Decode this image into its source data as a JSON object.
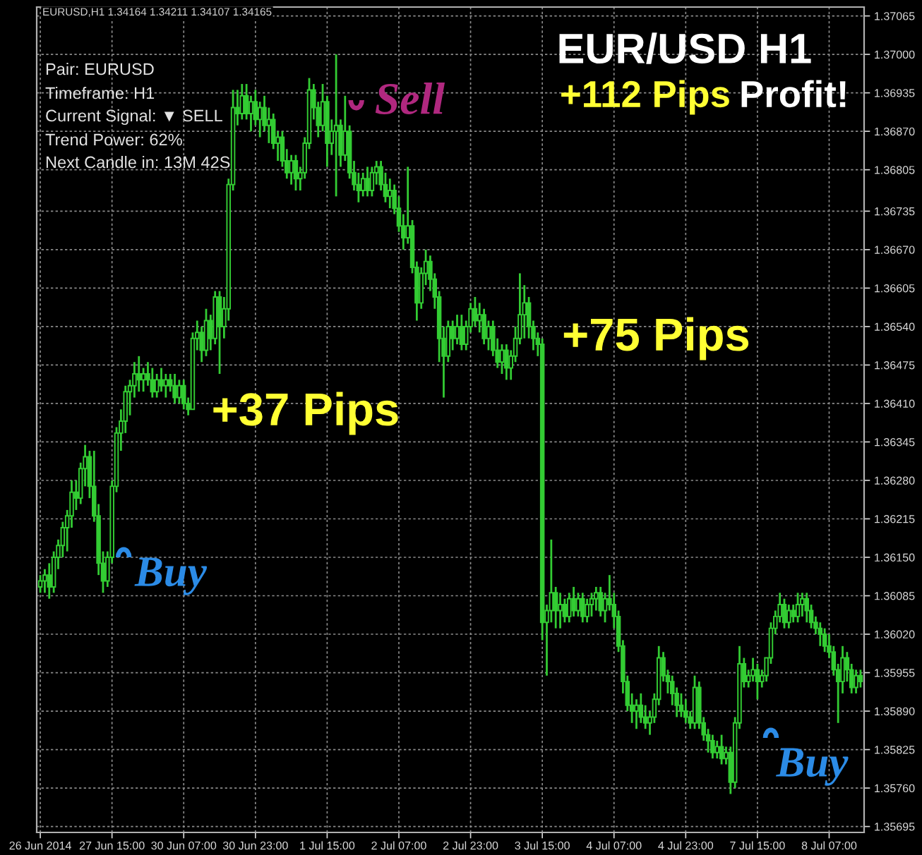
{
  "chart_data": {
    "type": "candlestick",
    "title": "EUR/USD H1",
    "color": "#33cc33",
    "grid": true,
    "ylim": [
      1.35685,
      1.3708
    ],
    "yticks": [
      1.37065,
      {
        "value": 1.37,
        "label": "1.37000"
      },
      1.36935,
      {
        "value": 1.3687,
        "label": "1.36870"
      },
      1.36805,
      1.36735,
      {
        "value": 1.3667,
        "label": "1.36670"
      },
      1.36605,
      {
        "value": 1.3654,
        "label": "1.36540"
      },
      1.36475,
      {
        "value": 1.3641,
        "label": "1.36410"
      },
      1.36345,
      {
        "value": 1.3628,
        "label": "1.36280"
      },
      1.36215,
      {
        "value": 1.3615,
        "label": "1.36150"
      },
      1.36085,
      {
        "value": 1.3602,
        "label": "1.36020"
      },
      1.35955,
      {
        "value": 1.3589,
        "label": "1.35890"
      },
      1.35825,
      {
        "value": 1.3576,
        "label": "1.35760"
      },
      1.35695
    ],
    "categories": [
      "26 Jun 2014",
      null,
      null,
      null,
      null,
      null,
      null,
      null,
      null,
      null,
      null,
      null,
      null,
      null,
      null,
      null,
      "27 Jun 15:00",
      null,
      null,
      null,
      null,
      null,
      null,
      null,
      null,
      null,
      null,
      null,
      null,
      null,
      null,
      null,
      "30 Jun 07:00",
      null,
      null,
      null,
      null,
      null,
      null,
      null,
      null,
      null,
      null,
      null,
      null,
      null,
      null,
      null,
      "30 Jun 23:00",
      null,
      null,
      null,
      null,
      null,
      null,
      null,
      null,
      null,
      null,
      null,
      null,
      null,
      null,
      null,
      "1 Jul 15:00",
      null,
      null,
      null,
      null,
      null,
      null,
      null,
      null,
      null,
      null,
      null,
      null,
      null,
      null,
      null,
      "2 Jul 07:00",
      null,
      null,
      null,
      null,
      null,
      null,
      null,
      null,
      null,
      null,
      null,
      null,
      null,
      null,
      null,
      "2 Jul 23:00",
      null,
      null,
      null,
      null,
      null,
      null,
      null,
      null,
      null,
      null,
      null,
      null,
      null,
      null,
      null,
      "3 Jul 15:00",
      null,
      null,
      null,
      null,
      null,
      null,
      null,
      null,
      null,
      null,
      null,
      null,
      null,
      null,
      null,
      "4 Jul 07:00",
      null,
      null,
      null,
      null,
      null,
      null,
      null,
      null,
      null,
      null,
      null,
      null,
      null,
      null,
      null,
      "4 Jul 23:00",
      null,
      null,
      null,
      null,
      null,
      null,
      null,
      null,
      null,
      null,
      null,
      null,
      null,
      null,
      null,
      "7 Jul 15:00",
      null,
      null,
      null,
      null,
      null,
      null,
      null,
      null,
      null,
      null,
      null,
      null,
      null,
      null,
      null,
      "8 Jul 07:00",
      null,
      null,
      null,
      null,
      null,
      null,
      null
    ],
    "ohlc": [
      [
        1.361,
        1.3612,
        1.3609,
        1.3611
      ],
      [
        1.3611,
        1.3613,
        1.3609,
        1.3612
      ],
      [
        1.3612,
        1.3614,
        1.3608,
        1.361
      ],
      [
        1.361,
        1.3616,
        1.3609,
        1.3615
      ],
      [
        1.3615,
        1.3618,
        1.3613,
        1.3617
      ],
      [
        1.3617,
        1.3621,
        1.3615,
        1.362
      ],
      [
        1.362,
        1.3623,
        1.3616,
        1.3622
      ],
      [
        1.3622,
        1.3628,
        1.362,
        1.3626
      ],
      [
        1.3626,
        1.3628,
        1.3623,
        1.3625
      ],
      [
        1.3625,
        1.3631,
        1.3624,
        1.363
      ],
      [
        1.363,
        1.3634,
        1.3627,
        1.3632
      ],
      [
        1.3632,
        1.3633,
        1.3625,
        1.3627
      ],
      [
        1.3627,
        1.3633,
        1.3621,
        1.3622
      ],
      [
        1.3622,
        1.3624,
        1.3612,
        1.3614
      ],
      [
        1.3614,
        1.3616,
        1.3609,
        1.3611
      ],
      [
        1.3611,
        1.3616,
        1.361,
        1.3615
      ],
      [
        1.3615,
        1.3628,
        1.3614,
        1.3627
      ],
      [
        1.3627,
        1.3637,
        1.3626,
        1.3636
      ],
      [
        1.3636,
        1.364,
        1.3633,
        1.3638
      ],
      [
        1.3638,
        1.3644,
        1.3636,
        1.3643
      ],
      [
        1.3643,
        1.3645,
        1.3639,
        1.3644
      ],
      [
        1.3644,
        1.3648,
        1.3642,
        1.3646
      ],
      [
        1.3646,
        1.3649,
        1.3643,
        1.3645
      ],
      [
        1.3645,
        1.3647,
        1.3643,
        1.3646
      ],
      [
        1.3646,
        1.3648,
        1.3644,
        1.3645
      ],
      [
        1.3645,
        1.3647,
        1.3642,
        1.3643
      ],
      [
        1.3643,
        1.3646,
        1.3642,
        1.3645
      ],
      [
        1.3645,
        1.3647,
        1.3643,
        1.3644
      ],
      [
        1.3644,
        1.3646,
        1.3642,
        1.3645
      ],
      [
        1.3645,
        1.3646,
        1.3643,
        1.3644
      ],
      [
        1.3644,
        1.3646,
        1.3641,
        1.3642
      ],
      [
        1.3642,
        1.3645,
        1.3641,
        1.3644
      ],
      [
        1.3644,
        1.3645,
        1.364,
        1.3641
      ],
      [
        1.3641,
        1.3642,
        1.3639,
        1.364
      ],
      [
        1.364,
        1.3653,
        1.364,
        1.3652
      ],
      [
        1.3652,
        1.3655,
        1.365,
        1.3653
      ],
      [
        1.3653,
        1.3654,
        1.3648,
        1.365
      ],
      [
        1.365,
        1.3657,
        1.3649,
        1.3655
      ],
      [
        1.3655,
        1.3656,
        1.365,
        1.3652
      ],
      [
        1.3652,
        1.366,
        1.3651,
        1.3659
      ],
      [
        1.3659,
        1.366,
        1.3646,
        1.3654
      ],
      [
        1.3654,
        1.3659,
        1.3652,
        1.3657
      ],
      [
        1.3657,
        1.3679,
        1.3655,
        1.3678
      ],
      [
        1.3678,
        1.3694,
        1.3677,
        1.3691
      ],
      [
        1.3691,
        1.3694,
        1.3688,
        1.369
      ],
      [
        1.369,
        1.3695,
        1.3689,
        1.3693
      ],
      [
        1.3693,
        1.3695,
        1.3689,
        1.369
      ],
      [
        1.369,
        1.3693,
        1.3687,
        1.3692
      ],
      [
        1.3692,
        1.3694,
        1.3688,
        1.3689
      ],
      [
        1.3689,
        1.3692,
        1.3686,
        1.3691
      ],
      [
        1.3691,
        1.3693,
        1.3687,
        1.3688
      ],
      [
        1.3688,
        1.3691,
        1.3685,
        1.3689
      ],
      [
        1.3689,
        1.369,
        1.3684,
        1.3685
      ],
      [
        1.3685,
        1.3687,
        1.3682,
        1.3686
      ],
      [
        1.3686,
        1.3687,
        1.3681,
        1.3682
      ],
      [
        1.3682,
        1.3684,
        1.3679,
        1.368
      ],
      [
        1.368,
        1.3683,
        1.3678,
        1.3682
      ],
      [
        1.3682,
        1.3683,
        1.3677,
        1.3679
      ],
      [
        1.3679,
        1.3681,
        1.3677,
        1.368
      ],
      [
        1.368,
        1.3686,
        1.3679,
        1.3685
      ],
      [
        1.3685,
        1.3696,
        1.3684,
        1.3694
      ],
      [
        1.3694,
        1.3695,
        1.3689,
        1.3691
      ],
      [
        1.3691,
        1.3692,
        1.3686,
        1.3688
      ],
      [
        1.3688,
        1.3695,
        1.3687,
        1.3692
      ],
      [
        1.3692,
        1.3693,
        1.3681,
        1.3685
      ],
      [
        1.3685,
        1.3689,
        1.3683,
        1.3687
      ],
      [
        1.3687,
        1.37,
        1.3676,
        1.3688
      ],
      [
        1.3688,
        1.3689,
        1.3681,
        1.3683
      ],
      [
        1.3683,
        1.3693,
        1.3682,
        1.3687
      ],
      [
        1.3687,
        1.3688,
        1.3679,
        1.368
      ],
      [
        1.368,
        1.3682,
        1.3677,
        1.3678
      ],
      [
        1.3678,
        1.368,
        1.3675,
        1.3677
      ],
      [
        1.3677,
        1.368,
        1.3676,
        1.3679
      ],
      [
        1.3679,
        1.3681,
        1.3676,
        1.3677
      ],
      [
        1.3677,
        1.3681,
        1.3676,
        1.368
      ],
      [
        1.368,
        1.3682,
        1.3678,
        1.3681
      ],
      [
        1.3681,
        1.3682,
        1.3677,
        1.3678
      ],
      [
        1.3678,
        1.368,
        1.3675,
        1.3676
      ],
      [
        1.3676,
        1.3679,
        1.3674,
        1.3677
      ],
      [
        1.3677,
        1.3678,
        1.3673,
        1.3674
      ],
      [
        1.3674,
        1.3676,
        1.367,
        1.3671
      ],
      [
        1.3671,
        1.3673,
        1.3667,
        1.3669
      ],
      [
        1.3669,
        1.3681,
        1.3668,
        1.3671
      ],
      [
        1.3671,
        1.3672,
        1.3663,
        1.3664
      ],
      [
        1.3664,
        1.3665,
        1.3655,
        1.3658
      ],
      [
        1.3658,
        1.3664,
        1.3657,
        1.3663
      ],
      [
        1.3663,
        1.3667,
        1.3661,
        1.3665
      ],
      [
        1.3665,
        1.3666,
        1.366,
        1.3662
      ],
      [
        1.3662,
        1.3663,
        1.3657,
        1.3659
      ],
      [
        1.3659,
        1.366,
        1.3648,
        1.3652
      ],
      [
        1.3652,
        1.3654,
        1.3642,
        1.3649
      ],
      [
        1.3649,
        1.3655,
        1.3648,
        1.3654
      ],
      [
        1.3654,
        1.3655,
        1.365,
        1.3652
      ],
      [
        1.3652,
        1.3656,
        1.3651,
        1.3654
      ],
      [
        1.3654,
        1.3656,
        1.365,
        1.3651
      ],
      [
        1.3651,
        1.3655,
        1.365,
        1.3654
      ],
      [
        1.3654,
        1.3658,
        1.3653,
        1.3657
      ],
      [
        1.3657,
        1.3659,
        1.3654,
        1.3655
      ],
      [
        1.3655,
        1.3658,
        1.3653,
        1.3656
      ],
      [
        1.3656,
        1.3657,
        1.3651,
        1.3652
      ],
      [
        1.3652,
        1.3655,
        1.365,
        1.3654
      ],
      [
        1.3654,
        1.3655,
        1.3649,
        1.365
      ],
      [
        1.365,
        1.3652,
        1.3647,
        1.3648
      ],
      [
        1.3648,
        1.3651,
        1.3646,
        1.365
      ],
      [
        1.365,
        1.3651,
        1.3645,
        1.3647
      ],
      [
        1.3647,
        1.365,
        1.3645,
        1.3649
      ],
      [
        1.3649,
        1.3654,
        1.3648,
        1.3652
      ],
      [
        1.3652,
        1.3663,
        1.3651,
        1.3656
      ],
      [
        1.3656,
        1.3661,
        1.3652,
        1.3658
      ],
      [
        1.3658,
        1.3659,
        1.3652,
        1.3654
      ],
      [
        1.3654,
        1.3655,
        1.365,
        1.3652
      ],
      [
        1.3652,
        1.3653,
        1.3649,
        1.3651
      ],
      [
        1.3651,
        1.3652,
        1.3601,
        1.3604
      ],
      [
        1.3604,
        1.3607,
        1.3595,
        1.3606
      ],
      [
        1.3606,
        1.3618,
        1.3604,
        1.3609
      ],
      [
        1.3609,
        1.361,
        1.3603,
        1.3606
      ],
      [
        1.3606,
        1.3609,
        1.3603,
        1.3607
      ],
      [
        1.3607,
        1.3608,
        1.3604,
        1.3605
      ],
      [
        1.3605,
        1.3609,
        1.3604,
        1.3608
      ],
      [
        1.3608,
        1.361,
        1.3605,
        1.3606
      ],
      [
        1.3606,
        1.3609,
        1.3605,
        1.3608
      ],
      [
        1.3608,
        1.3609,
        1.3604,
        1.3605
      ],
      [
        1.3605,
        1.3608,
        1.3604,
        1.3607
      ],
      [
        1.3607,
        1.3609,
        1.3605,
        1.3608
      ],
      [
        1.3608,
        1.361,
        1.3606,
        1.3609
      ],
      [
        1.3609,
        1.361,
        1.3605,
        1.3606
      ],
      [
        1.3606,
        1.3609,
        1.3604,
        1.3608
      ],
      [
        1.3608,
        1.3612,
        1.3606,
        1.3607
      ],
      [
        1.3607,
        1.3609,
        1.3603,
        1.3605
      ],
      [
        1.3605,
        1.3606,
        1.3599,
        1.36
      ],
      [
        1.36,
        1.3601,
        1.3592,
        1.3594
      ],
      [
        1.3594,
        1.3595,
        1.3589,
        1.359
      ],
      [
        1.359,
        1.3592,
        1.3587,
        1.3589
      ],
      [
        1.3589,
        1.3591,
        1.3586,
        1.359
      ],
      [
        1.359,
        1.3592,
        1.3587,
        1.3588
      ],
      [
        1.3588,
        1.359,
        1.3586,
        1.3587
      ],
      [
        1.3587,
        1.3589,
        1.3585,
        1.3588
      ],
      [
        1.3588,
        1.3592,
        1.3587,
        1.3591
      ],
      [
        1.3591,
        1.36,
        1.359,
        1.3598
      ],
      [
        1.3598,
        1.3599,
        1.3594,
        1.3595
      ],
      [
        1.3595,
        1.3596,
        1.3592,
        1.3594
      ],
      [
        1.3594,
        1.3595,
        1.359,
        1.3592
      ],
      [
        1.3592,
        1.3593,
        1.3588,
        1.359
      ],
      [
        1.359,
        1.3592,
        1.3588,
        1.3589
      ],
      [
        1.3589,
        1.3591,
        1.3587,
        1.3588
      ],
      [
        1.3588,
        1.3589,
        1.3586,
        1.3587
      ],
      [
        1.3587,
        1.3595,
        1.3586,
        1.3593
      ],
      [
        1.3593,
        1.3594,
        1.3586,
        1.3587
      ],
      [
        1.3587,
        1.3588,
        1.3584,
        1.3585
      ],
      [
        1.3585,
        1.3586,
        1.3582,
        1.3584
      ],
      [
        1.3584,
        1.3585,
        1.3581,
        1.3582
      ],
      [
        1.3582,
        1.3584,
        1.3581,
        1.3583
      ],
      [
        1.3583,
        1.3585,
        1.358,
        1.3581
      ],
      [
        1.3581,
        1.3583,
        1.358,
        1.3582
      ],
      [
        1.3582,
        1.3583,
        1.3575,
        1.3577
      ],
      [
        1.3577,
        1.3588,
        1.3576,
        1.3587
      ],
      [
        1.3587,
        1.36,
        1.3586,
        1.3597
      ],
      [
        1.3597,
        1.3598,
        1.3593,
        1.3594
      ],
      [
        1.3594,
        1.3596,
        1.3593,
        1.3595
      ],
      [
        1.3595,
        1.3598,
        1.3594,
        1.3596
      ],
      [
        1.3596,
        1.3597,
        1.3591,
        1.3594
      ],
      [
        1.3594,
        1.3596,
        1.3593,
        1.3595
      ],
      [
        1.3595,
        1.3598,
        1.3594,
        1.3598
      ],
      [
        1.3598,
        1.3604,
        1.3597,
        1.3603
      ],
      [
        1.3603,
        1.3606,
        1.3602,
        1.3605
      ],
      [
        1.3605,
        1.3609,
        1.3604,
        1.3607
      ],
      [
        1.3607,
        1.3608,
        1.3603,
        1.3604
      ],
      [
        1.3604,
        1.3607,
        1.3603,
        1.3606
      ],
      [
        1.3606,
        1.3607,
        1.3604,
        1.3605
      ],
      [
        1.3605,
        1.3609,
        1.3604,
        1.3607
      ],
      [
        1.3607,
        1.3609,
        1.3605,
        1.3608
      ],
      [
        1.3608,
        1.3609,
        1.3604,
        1.3606
      ],
      [
        1.3606,
        1.3607,
        1.3603,
        1.3604
      ],
      [
        1.3604,
        1.3605,
        1.3602,
        1.3603
      ],
      [
        1.3603,
        1.3604,
        1.36,
        1.3602
      ],
      [
        1.3602,
        1.3603,
        1.3599,
        1.36
      ],
      [
        1.36,
        1.3602,
        1.3598,
        1.3599
      ],
      [
        1.3599,
        1.36,
        1.3595,
        1.3596
      ],
      [
        1.3596,
        1.3597,
        1.3587,
        1.3594
      ],
      [
        1.3594,
        1.36,
        1.3592,
        1.3598
      ],
      [
        1.3598,
        1.3599,
        1.3594,
        1.3596
      ],
      [
        1.3596,
        1.3597,
        1.3592,
        1.3593
      ],
      [
        1.3593,
        1.3596,
        1.3592,
        1.3595
      ],
      [
        1.3595,
        1.3596,
        1.3593,
        1.3594
      ]
    ],
    "annotations": [
      "EURUSD,H1 1.34164 1.34211 1.34107 1.34165",
      "Pair: EURUSD",
      "Timeframe: H1",
      "Current Signal: ▼ SELL",
      "Trend Power: 62%",
      "Next Candle in: 13M 42S",
      "+112 Pips",
      "Profit!",
      "+37 Pips",
      "+75 Pips",
      "Sell",
      "Buy",
      "Buy"
    ]
  }
}
